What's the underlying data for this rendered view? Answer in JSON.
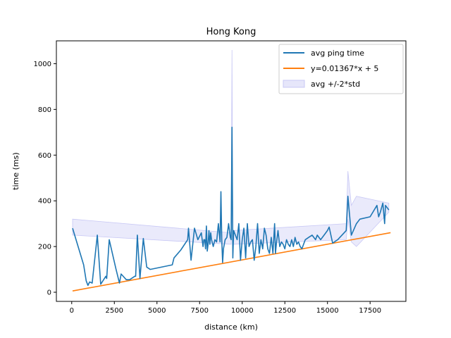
{
  "chart_data": {
    "type": "line",
    "title": "Hong Kong",
    "xlabel": "distance (km)",
    "ylabel": "time (ms)",
    "xlim": [
      -900,
      19600
    ],
    "ylim": [
      -40,
      1100
    ],
    "xticks": [
      0,
      2500,
      5000,
      7500,
      10000,
      12500,
      15000,
      17500
    ],
    "yticks": [
      0,
      200,
      400,
      600,
      800,
      1000
    ],
    "grid": false,
    "legend_position": "top-right",
    "colors": {
      "avg": "#1f77b4",
      "fit": "#ff7f0e",
      "band_fill": "#e6e6fa",
      "band_edge": "#c8c8f5"
    },
    "series": [
      {
        "name": "avg ping time",
        "kind": "line",
        "x": [
          50,
          700,
          850,
          950,
          1050,
          1200,
          1500,
          1700,
          2000,
          2050,
          2200,
          2600,
          2800,
          2900,
          3200,
          3400,
          3700,
          3750,
          3850,
          4000,
          4200,
          4400,
          4600,
          5900,
          6000,
          6400,
          6800,
          6850,
          7000,
          7200,
          7400,
          7600,
          7700,
          7750,
          7800,
          7850,
          7900,
          7950,
          8000,
          8050,
          8100,
          8150,
          8200,
          8300,
          8400,
          8500,
          8600,
          8700,
          8750,
          8800,
          8850,
          8900,
          9000,
          9100,
          9200,
          9300,
          9350,
          9400,
          9450,
          9500,
          9600,
          9700,
          9800,
          9900,
          10000,
          10100,
          10200,
          10300,
          10400,
          10500,
          10600,
          10700,
          10800,
          10900,
          11000,
          11100,
          11200,
          11300,
          11400,
          11500,
          11600,
          11700,
          11800,
          11900,
          11950,
          12000,
          12100,
          12200,
          12300,
          12400,
          12500,
          12600,
          12700,
          12800,
          12900,
          13000,
          13100,
          13200,
          13300,
          13400,
          13500,
          13700,
          13900,
          14100,
          14300,
          14400,
          14600,
          14800,
          15000,
          15100,
          15300,
          15600,
          16100,
          16200,
          16400,
          16700,
          16900,
          17500,
          17900,
          18000,
          18100,
          18250,
          18350,
          18400,
          18600
        ],
        "y": [
          280,
          120,
          50,
          30,
          45,
          40,
          250,
          35,
          70,
          60,
          230,
          100,
          40,
          80,
          55,
          55,
          70,
          70,
          250,
          60,
          235,
          110,
          100,
          120,
          150,
          185,
          230,
          280,
          140,
          280,
          230,
          260,
          200,
          230,
          230,
          190,
          290,
          180,
          210,
          270,
          210,
          260,
          230,
          200,
          230,
          220,
          300,
          220,
          440,
          230,
          130,
          190,
          230,
          240,
          300,
          240,
          230,
          722,
          150,
          270,
          250,
          230,
          300,
          140,
          230,
          280,
          150,
          300,
          200,
          220,
          230,
          140,
          200,
          300,
          170,
          230,
          190,
          280,
          250,
          190,
          170,
          240,
          170,
          300,
          170,
          210,
          270,
          200,
          220,
          210,
          190,
          230,
          210,
          200,
          230,
          200,
          240,
          210,
          220,
          200,
          190,
          230,
          240,
          250,
          230,
          250,
          230,
          250,
          270,
          285,
          215,
          230,
          270,
          420,
          250,
          300,
          320,
          330,
          380,
          330,
          350,
          390,
          300,
          380,
          360
        ]
      },
      {
        "name": "y=0.01367*x + 5",
        "kind": "line",
        "slope": 0.01367,
        "intercept": 5,
        "x": [
          50,
          18700
        ],
        "y": [
          5.68,
          260.63
        ]
      },
      {
        "name": "avg +/-2*std",
        "kind": "band",
        "x": [
          50,
          9350,
          9400,
          9450,
          16100,
          16200,
          16400,
          16700,
          18600
        ],
        "upper": [
          320,
          260,
          1060,
          270,
          300,
          530,
          380,
          420,
          390
        ],
        "lower": [
          250,
          210,
          400,
          210,
          230,
          320,
          220,
          200,
          350
        ]
      }
    ]
  }
}
